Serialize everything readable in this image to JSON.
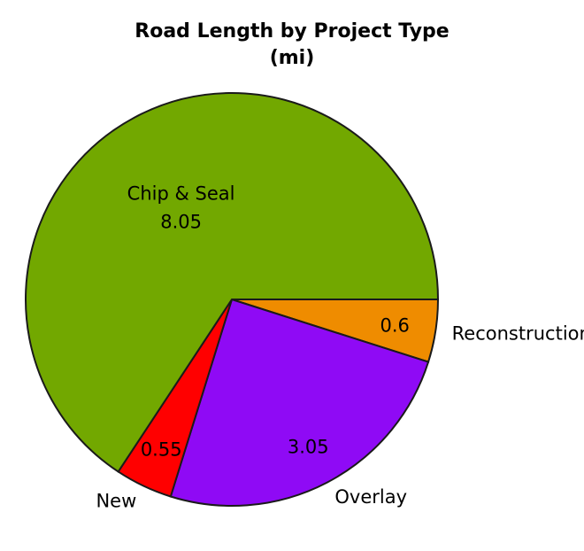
{
  "chart_data": {
    "type": "pie",
    "title": "Road Length by Project Type",
    "subtitle": "(mi)",
    "slices": [
      {
        "label": "Reconstruction",
        "value": 0.6,
        "value_label": "0.6",
        "color": "#ef8c00",
        "show_category_inside": false
      },
      {
        "label": "Overlay",
        "value": 3.05,
        "value_label": "3.05",
        "color": "#8f0af5",
        "show_category_inside": false
      },
      {
        "label": "New",
        "value": 0.55,
        "value_label": "0.55",
        "color": "#ff0000",
        "show_category_inside": false
      },
      {
        "label": "Chip & Seal",
        "value": 8.05,
        "value_label": "8.05",
        "color": "#72a800",
        "show_category_inside": true
      }
    ],
    "start_angle_deg": 0,
    "direction": "clockwise",
    "legend": "none"
  }
}
